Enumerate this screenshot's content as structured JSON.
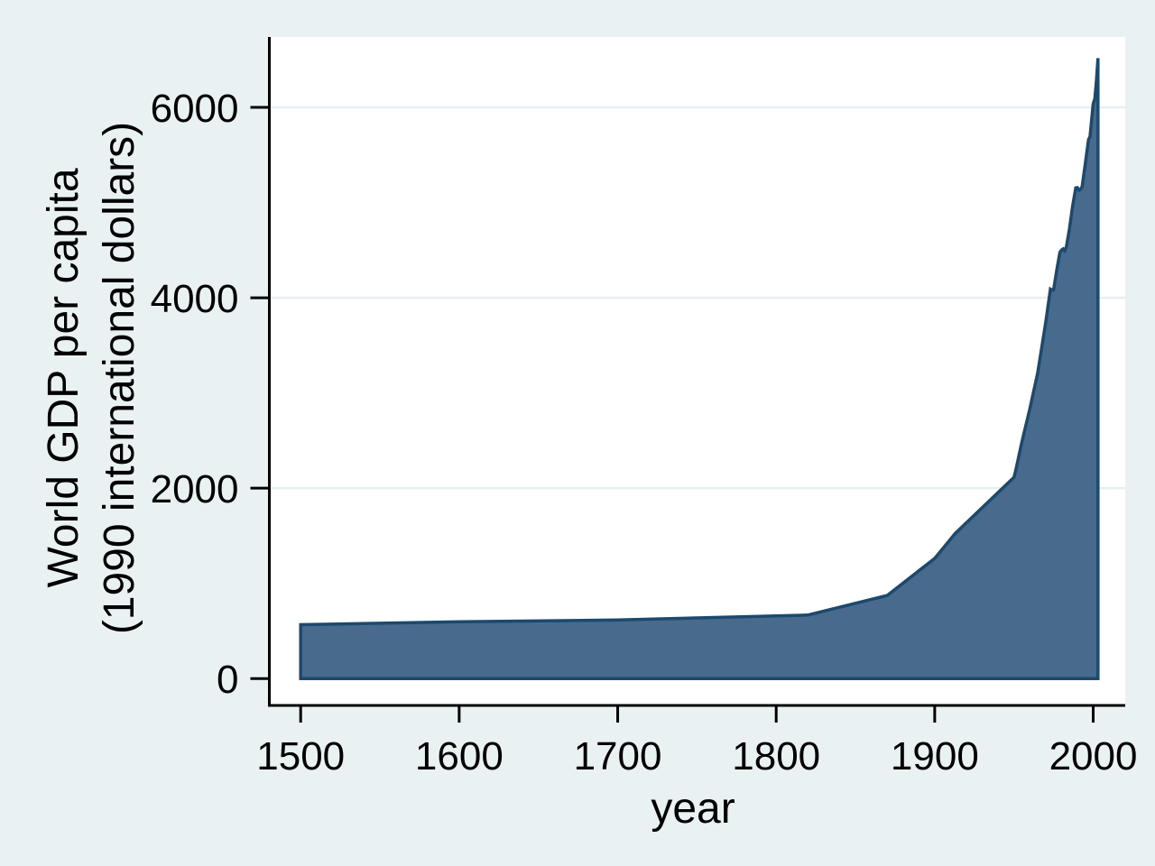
{
  "figure": {
    "background_color": "#eaf1f2",
    "plot_background_color": "#ffffff",
    "gridline_color": "#e6eff1",
    "axis_color": "#000000",
    "text_color": "#000000",
    "area_fill_color": "#486a8c",
    "area_line_color": "#1c496e"
  },
  "chart_data": {
    "type": "area",
    "title": "",
    "xlabel": "year",
    "ylabel_line1": "World GDP per capita",
    "ylabel_line2": "(1990 international dollars)",
    "x_ticks": [
      1500,
      1600,
      1700,
      1800,
      1900,
      2000
    ],
    "y_ticks": [
      0,
      2000,
      4000,
      6000
    ],
    "xlim": [
      1452,
      2021
    ],
    "ylim": [
      -280,
      6800
    ],
    "grid": "horizontal gridlines at y ticks, white plot background",
    "legend": "none",
    "series": [
      {
        "name": "World GDP per capita (1990 international dollars)",
        "points": [
          [
            1500,
            566
          ],
          [
            1600,
            596
          ],
          [
            1700,
            615
          ],
          [
            1820,
            667
          ],
          [
            1870,
            873
          ],
          [
            1900,
            1262
          ],
          [
            1913,
            1526
          ],
          [
            1950,
            2113
          ],
          [
            1951,
            2180
          ],
          [
            1955,
            2486
          ],
          [
            1960,
            2834
          ],
          [
            1965,
            3211
          ],
          [
            1970,
            3736
          ],
          [
            1973,
            4091
          ],
          [
            1974,
            4080
          ],
          [
            1975,
            4083
          ],
          [
            1977,
            4290
          ],
          [
            1979,
            4477
          ],
          [
            1980,
            4501
          ],
          [
            1981,
            4513
          ],
          [
            1982,
            4495
          ],
          [
            1983,
            4532
          ],
          [
            1985,
            4726
          ],
          [
            1987,
            4963
          ],
          [
            1989,
            5155
          ],
          [
            1990,
            5157
          ],
          [
            1991,
            5130
          ],
          [
            1992,
            5140
          ],
          [
            1993,
            5165
          ],
          [
            1995,
            5404
          ],
          [
            1997,
            5660
          ],
          [
            1998,
            5695
          ],
          [
            2000,
            6038
          ],
          [
            2001,
            6090
          ],
          [
            2002,
            6270
          ],
          [
            2003,
            6516
          ]
        ]
      }
    ]
  }
}
